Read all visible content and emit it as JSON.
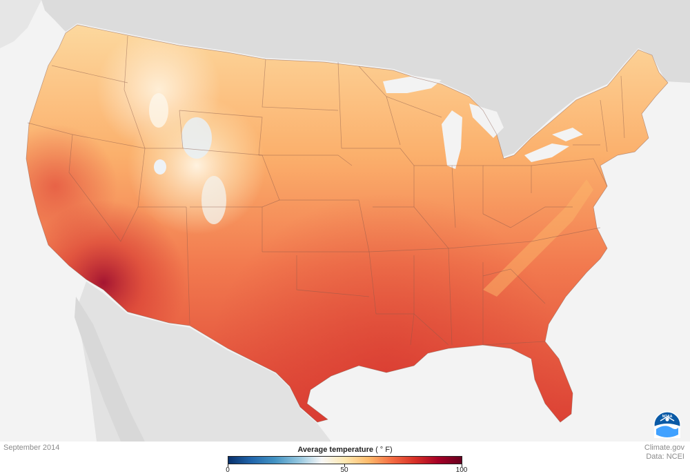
{
  "map": {
    "date_label": "September 2014",
    "legend": {
      "title": "Average temperature",
      "unit": "( ° F)",
      "min_label": "0",
      "mid_label": "50",
      "max_label": "100",
      "min": 0,
      "max": 100,
      "gradient_colors": [
        "#08306b",
        "#2166ac",
        "#4393c3",
        "#92c5de",
        "#f7f7f7",
        "#fee8b0",
        "#fdbb6c",
        "#f46d43",
        "#d73027",
        "#a50026",
        "#67001f"
      ]
    },
    "credit": {
      "site": "Climate.gov",
      "data_source": "Data: NCEI"
    },
    "logo": {
      "text": "NOAA",
      "icon": "noaa-logo-icon"
    },
    "colors": {
      "background": "#f3f3f3",
      "neighbor_land": "#dcdcdc",
      "lake": "#f3f3f3",
      "state_border": "#8a5a4a"
    }
  }
}
